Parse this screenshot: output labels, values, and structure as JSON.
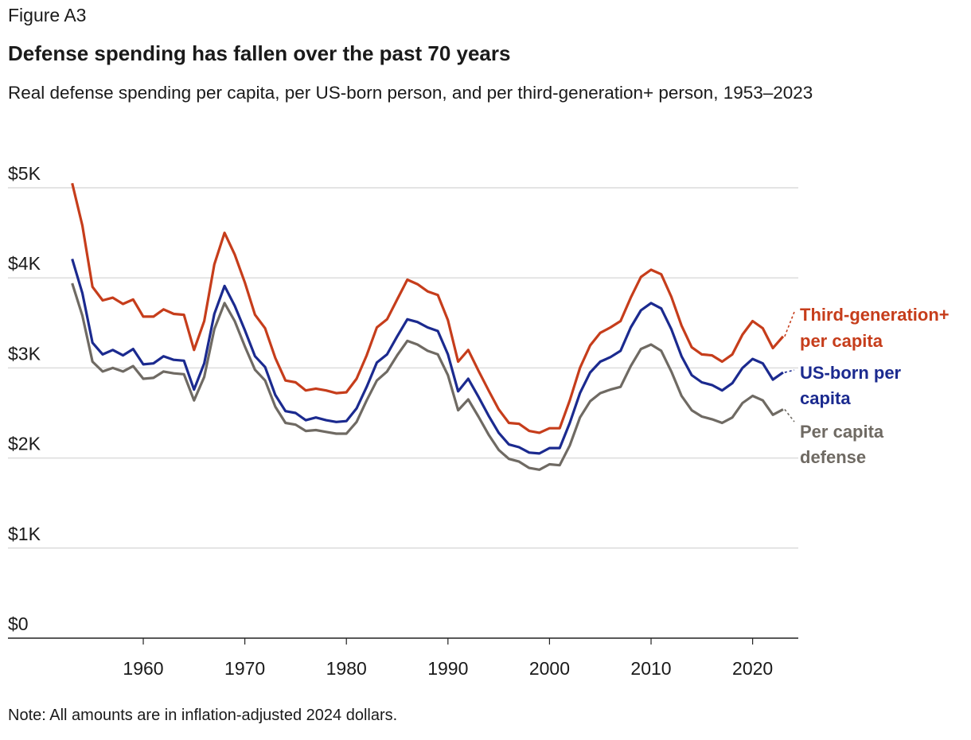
{
  "figure_label": "Figure A3",
  "title": "Defense spending has fallen over the past 70 years",
  "subtitle": "Real defense spending per capita, per US-born person, and per third-generation+ person, 1953–2023",
  "note": "Note: All amounts are in inflation-adjusted 2024 dollars.",
  "chart_data": {
    "type": "line",
    "title": "Defense spending has fallen over the past 70 years",
    "xlabel": "",
    "ylabel": "",
    "x_start": 1953,
    "x_end": 2023,
    "xlim": [
      1953,
      2024
    ],
    "ylim": [
      0,
      5
    ],
    "y_ticks": [
      0,
      1,
      2,
      3,
      4,
      5
    ],
    "y_tick_labels": [
      "$0",
      "$1K",
      "$2K",
      "$3K",
      "$4K",
      "$5K"
    ],
    "x_ticks": [
      1960,
      1970,
      1980,
      1990,
      2000,
      2010,
      2020
    ],
    "x_tick_labels": [
      "1960",
      "1970",
      "1980",
      "1990",
      "2000",
      "2010",
      "2020"
    ],
    "grid": "horizontal",
    "legend": "direct labels at right end of lines",
    "series": [
      {
        "name": "Third-generation+ per capita",
        "label_lines": [
          "Third-generation+",
          "per capita"
        ],
        "color": "#c63d1b",
        "values": [
          5.05,
          4.58,
          3.9,
          3.75,
          3.78,
          3.71,
          3.76,
          3.57,
          3.57,
          3.65,
          3.6,
          3.59,
          3.2,
          3.52,
          4.15,
          4.5,
          4.26,
          3.95,
          3.59,
          3.44,
          3.11,
          2.86,
          2.84,
          2.75,
          2.77,
          2.75,
          2.72,
          2.73,
          2.88,
          3.14,
          3.45,
          3.54,
          3.76,
          3.98,
          3.93,
          3.85,
          3.81,
          3.53,
          3.07,
          3.2,
          2.97,
          2.75,
          2.54,
          2.39,
          2.38,
          2.3,
          2.28,
          2.33,
          2.33,
          2.64,
          3.0,
          3.25,
          3.39,
          3.45,
          3.52,
          3.78,
          4.01,
          4.09,
          4.04,
          3.79,
          3.47,
          3.23,
          3.15,
          3.14,
          3.07,
          3.15,
          3.37,
          3.52,
          3.44,
          3.22,
          3.35
        ]
      },
      {
        "name": "US-born per capita",
        "label_lines": [
          "US-born per",
          "capita"
        ],
        "color": "#1b2a8f",
        "values": [
          4.21,
          3.83,
          3.28,
          3.15,
          3.2,
          3.14,
          3.21,
          3.04,
          3.05,
          3.13,
          3.09,
          3.08,
          2.76,
          3.05,
          3.6,
          3.91,
          3.69,
          3.42,
          3.13,
          3.01,
          2.7,
          2.52,
          2.5,
          2.42,
          2.45,
          2.42,
          2.4,
          2.41,
          2.55,
          2.79,
          3.06,
          3.15,
          3.35,
          3.54,
          3.51,
          3.45,
          3.41,
          3.15,
          2.74,
          2.88,
          2.68,
          2.47,
          2.28,
          2.15,
          2.12,
          2.06,
          2.05,
          2.11,
          2.11,
          2.39,
          2.72,
          2.95,
          3.07,
          3.12,
          3.19,
          3.45,
          3.64,
          3.72,
          3.66,
          3.43,
          3.13,
          2.92,
          2.84,
          2.81,
          2.75,
          2.83,
          3.0,
          3.1,
          3.05,
          2.87,
          2.95
        ]
      },
      {
        "name": "Per capita defense",
        "label_lines": [
          "Per capita",
          "defense"
        ],
        "color": "#6f6a63",
        "values": [
          3.94,
          3.58,
          3.07,
          2.96,
          3.0,
          2.96,
          3.02,
          2.88,
          2.89,
          2.96,
          2.94,
          2.93,
          2.64,
          2.9,
          3.43,
          3.72,
          3.52,
          3.24,
          2.98,
          2.86,
          2.57,
          2.39,
          2.37,
          2.3,
          2.31,
          2.29,
          2.27,
          2.27,
          2.4,
          2.64,
          2.86,
          2.96,
          3.14,
          3.3,
          3.26,
          3.19,
          3.15,
          2.92,
          2.53,
          2.65,
          2.46,
          2.26,
          2.09,
          1.99,
          1.96,
          1.89,
          1.87,
          1.93,
          1.92,
          2.14,
          2.45,
          2.63,
          2.72,
          2.76,
          2.79,
          3.02,
          3.21,
          3.26,
          3.19,
          2.96,
          2.69,
          2.53,
          2.46,
          2.43,
          2.39,
          2.45,
          2.61,
          2.69,
          2.64,
          2.48,
          2.54
        ]
      }
    ]
  }
}
